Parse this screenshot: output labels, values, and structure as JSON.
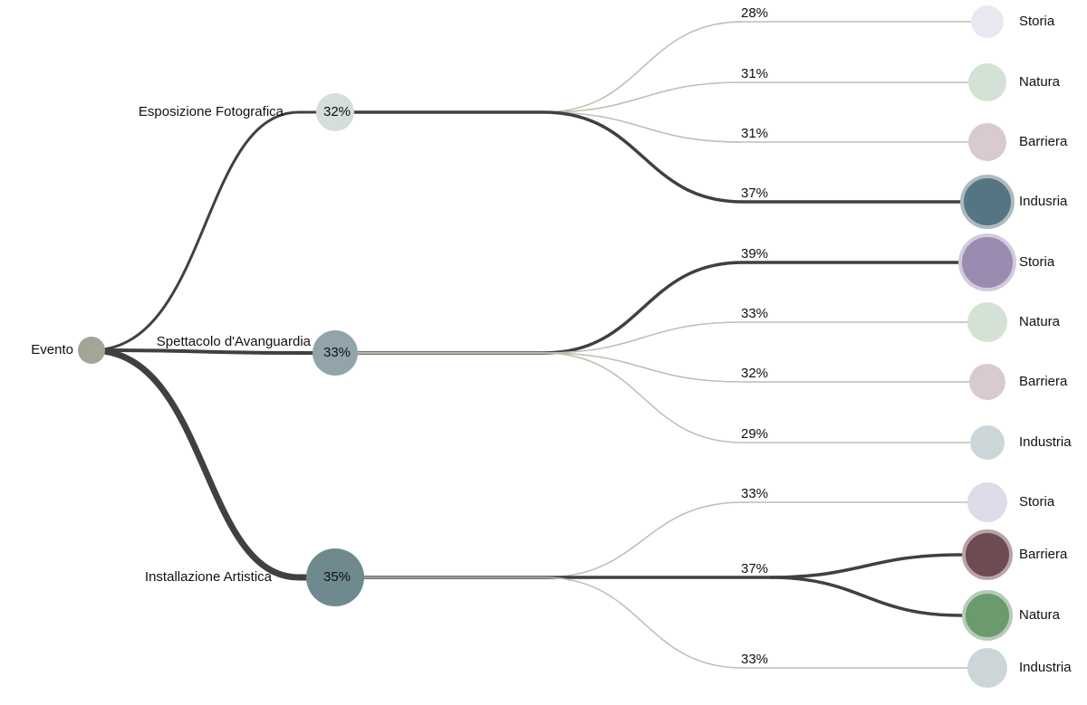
{
  "root": {
    "label": "Evento",
    "color": "#a5a595"
  },
  "branches": [
    {
      "label": "Esposizione Fotografica",
      "value_label": "32%",
      "color": "#d5dddd",
      "groups": [
        {
          "label": "28%",
          "leaves": [
            {
              "label": "Storia",
              "color": "#e8e8f0"
            }
          ]
        },
        {
          "label": "31%",
          "leaves": [
            {
              "label": "Natura",
              "color": "#d4e2d6"
            }
          ]
        },
        {
          "label": "31%",
          "leaves": [
            {
              "label": "Barriera",
              "color": "#d8cacd"
            }
          ]
        },
        {
          "label": "37%",
          "leaves": [
            {
              "label": "Indusria",
              "color": "#557583"
            }
          ]
        }
      ]
    },
    {
      "label": "Spettacolo d'Avanguardia",
      "value_label": "33%",
      "color": "#91a4ab",
      "groups": [
        {
          "label": "39%",
          "leaves": [
            {
              "label": "Storia",
              "color": "#9a8bb1"
            }
          ]
        },
        {
          "label": "33%",
          "leaves": [
            {
              "label": "Natura",
              "color": "#d4e2d6"
            }
          ]
        },
        {
          "label": "32%",
          "leaves": [
            {
              "label": "Barriera",
              "color": "#d8cacd"
            }
          ]
        },
        {
          "label": "29%",
          "leaves": [
            {
              "label": "Industria",
              "color": "#ccd6d8"
            }
          ]
        }
      ]
    },
    {
      "label": "Installazione Artistica",
      "value_label": "35%",
      "color": "#6e8a8f",
      "groups": [
        {
          "label": "33%",
          "leaves": [
            {
              "label": "Storia",
              "color": "#e0dbe9"
            }
          ]
        },
        {
          "label": "37%",
          "leaves": [
            {
              "label": "Barriera",
              "color": "#6e4a51"
            },
            {
              "label": "Natura",
              "color": "#6b9a6e"
            }
          ]
        },
        {
          "label": "33%",
          "leaves": [
            {
              "label": "Industria",
              "color": "#ccd6d8"
            }
          ]
        }
      ]
    }
  ]
}
